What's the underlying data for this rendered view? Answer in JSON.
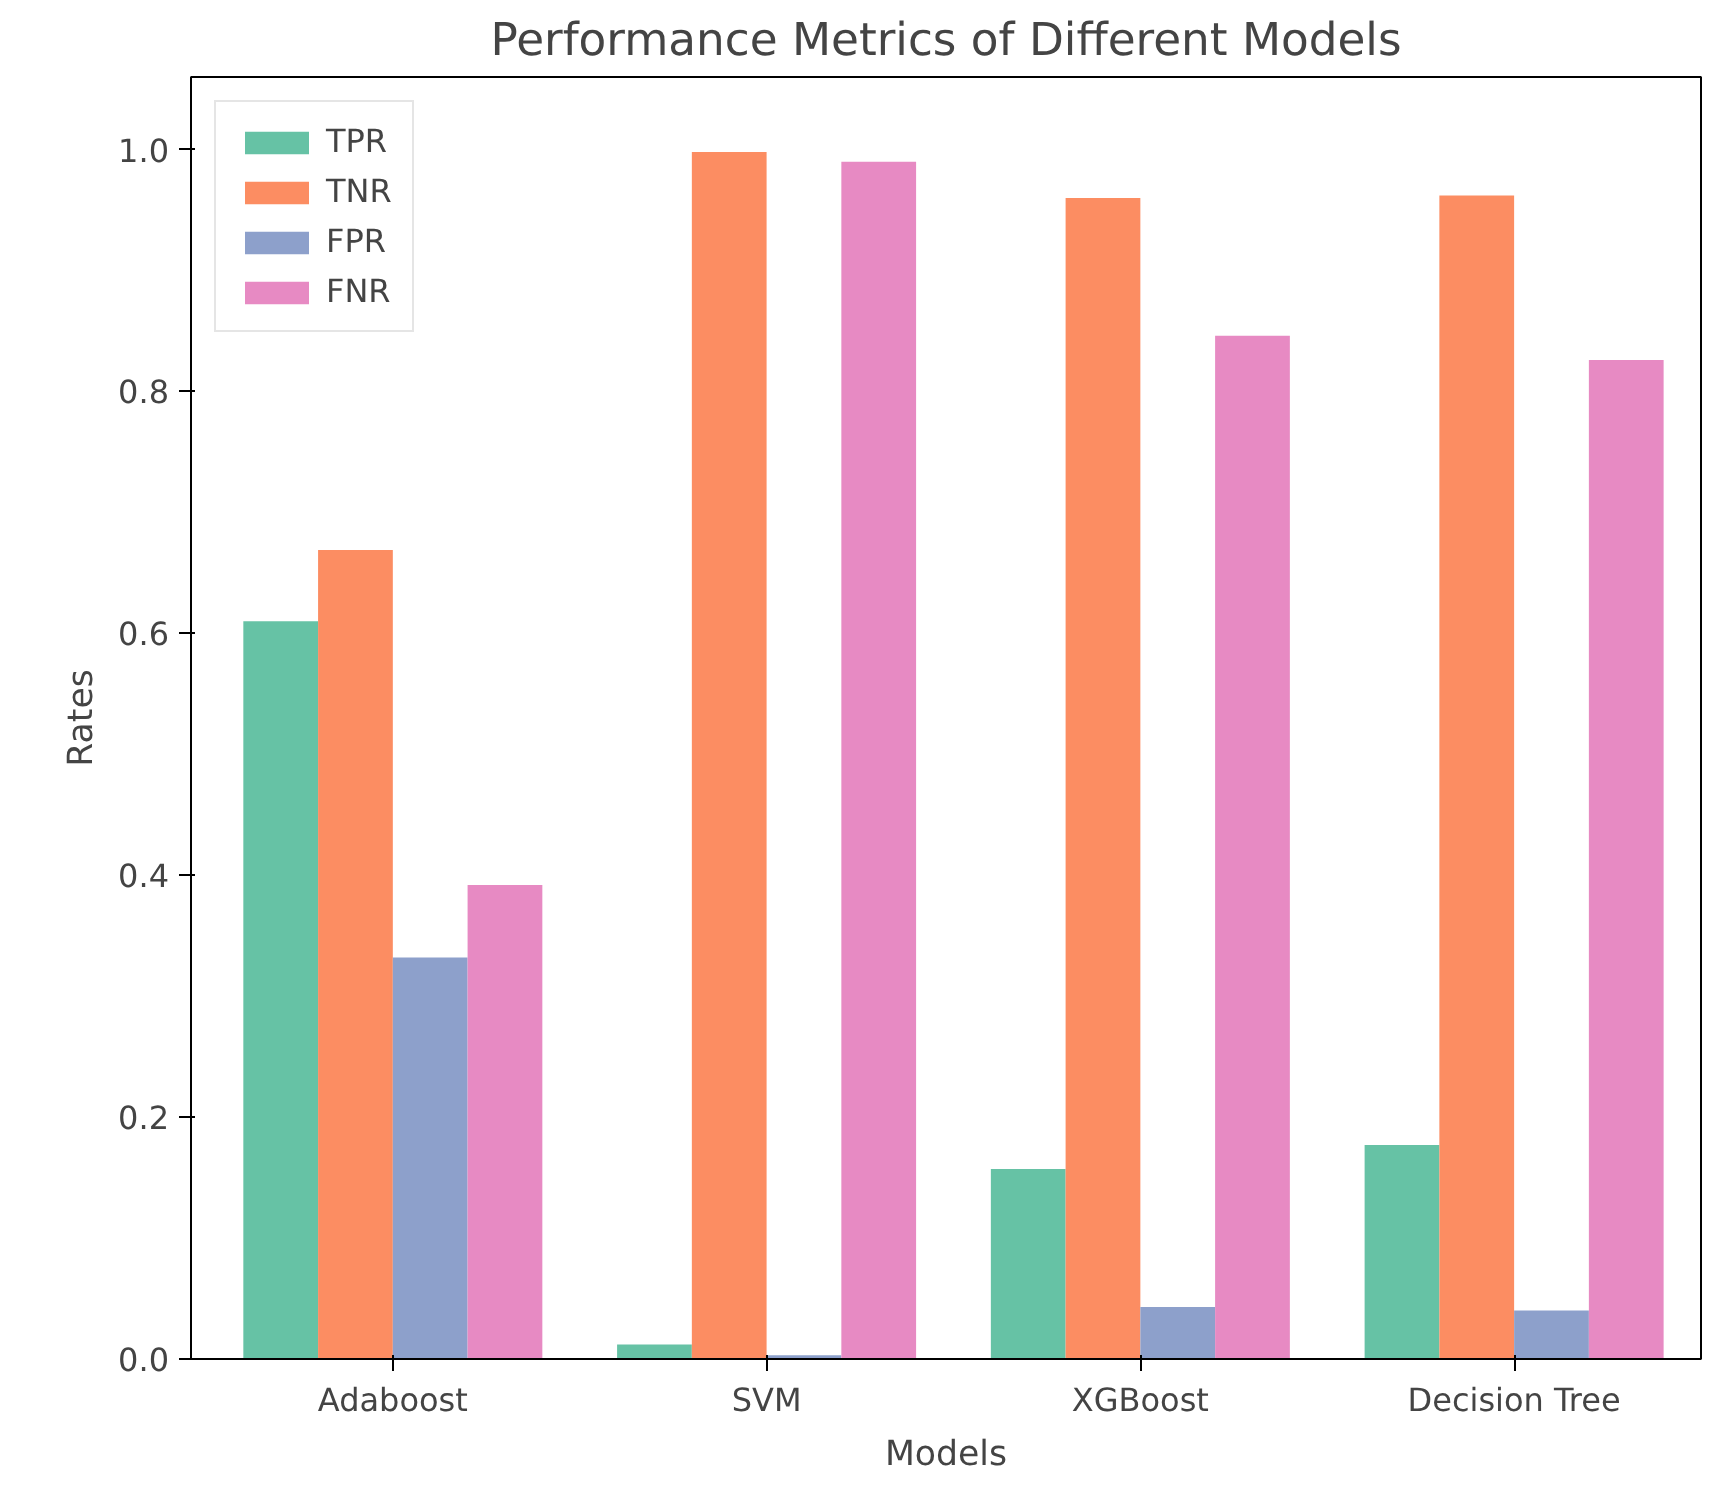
{
  "chart_data": {
    "type": "bar",
    "title": "Performance Metrics of Different Models",
    "xlabel": "Models",
    "ylabel": "Rates",
    "categories": [
      "Adaboost",
      "SVM",
      "XGBoost",
      "Decision Tree"
    ],
    "series": [
      {
        "name": "TPR",
        "color": "#66c2a5",
        "values": [
          0.61,
          0.012,
          0.157,
          0.177
        ]
      },
      {
        "name": "TNR",
        "color": "#fc8d62",
        "values": [
          0.669,
          0.998,
          0.96,
          0.962
        ]
      },
      {
        "name": "FPR",
        "color": "#8da0cb",
        "values": [
          0.332,
          0.003,
          0.043,
          0.04
        ]
      },
      {
        "name": "FNR",
        "color": "#e78ac3",
        "values": [
          0.392,
          0.99,
          0.846,
          0.826
        ]
      }
    ],
    "ylim": [
      0,
      1.06
    ],
    "yticks": [
      {
        "value": 0,
        "label": "0.0"
      },
      {
        "value": 0.2,
        "label": "0.2"
      },
      {
        "value": 0.4,
        "label": "0.4"
      },
      {
        "value": 0.6,
        "label": "0.6"
      },
      {
        "value": 0.8,
        "label": "0.8"
      },
      {
        "value": 1.0,
        "label": "1.0"
      }
    ],
    "grid": false,
    "legend": "top left"
  }
}
